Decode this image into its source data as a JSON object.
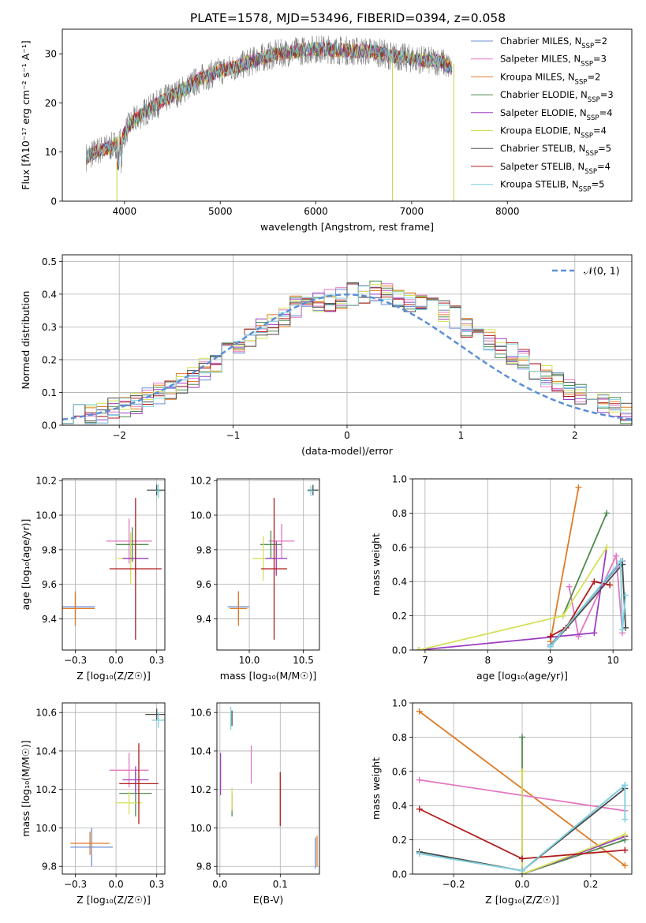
{
  "figure_title": "PLATE=1578, MJD=53496, FIBERID=0394, z=0.058",
  "chart_data": [
    {
      "type": "line",
      "id": "spectrum",
      "title": "PLATE=1578, MJD=53496, FIBERID=0394, z=0.058",
      "xlabel": "wavelength [Angstrom, rest frame]",
      "ylabel": "Flux [fλ10⁻¹⁷ erg cm⁻² s⁻¹ A⁻¹]",
      "xlim": [
        3350,
        9300
      ],
      "ylim": [
        0,
        35
      ],
      "xticks": [
        4000,
        5000,
        6000,
        7000,
        8000
      ],
      "yticks": [
        0,
        10,
        20,
        30
      ],
      "grid": false,
      "legend_position": "top-right",
      "data_color": "#808080",
      "continuum": {
        "x": [
          3600,
          3750,
          3850,
          3950,
          4050,
          4200,
          4400,
          4600,
          4800,
          5000,
          5200,
          5400,
          5600,
          5800,
          6000,
          6200,
          6400,
          6600,
          6800,
          7000,
          7200,
          7300,
          7420
        ],
        "y": [
          9,
          10.5,
          11,
          12,
          15.5,
          18,
          20.5,
          22.5,
          25,
          26.5,
          27.5,
          29,
          30,
          30.5,
          31,
          30.8,
          30.5,
          30.5,
          29.5,
          29,
          28.5,
          28.5,
          27
        ]
      },
      "series": [
        {
          "name": "Chabrier MILES, N_SSP=2",
          "color": "#6b8fd6"
        },
        {
          "name": "Salpeter MILES, N_SSP=3",
          "color": "#e377c2"
        },
        {
          "name": "Kroupa MILES, N_SSP=2",
          "color": "#e07b24"
        },
        {
          "name": "Chabrier ELODIE, N_SSP=3",
          "color": "#4e8a4e"
        },
        {
          "name": "Salpeter ELODIE, N_SSP=4",
          "color": "#9b3ec0"
        },
        {
          "name": "Kroupa ELODIE, N_SSP=4",
          "color": "#d4e157"
        },
        {
          "name": "Chabrier STELIB, N_SSP=5",
          "color": "#4a4a4a"
        },
        {
          "name": "Salpeter STELIB, N_SSP=4",
          "color": "#b01c1c"
        },
        {
          "name": "Kroupa STELIB, N_SSP=5",
          "color": "#7fd3dd"
        }
      ]
    },
    {
      "type": "area",
      "id": "residuals",
      "xlabel": "(data-model)/error",
      "ylabel": "Normed distribution",
      "xlim": [
        -2.5,
        2.5
      ],
      "ylim": [
        0,
        0.52
      ],
      "xticks": [
        -2,
        -1,
        0,
        1,
        2
      ],
      "yticks": [
        0,
        0.1,
        0.2,
        0.3,
        0.4,
        0.5
      ],
      "grid": true,
      "legend_position": "top-right",
      "reference": {
        "name": "𝒩(0, 1)",
        "mean": 0,
        "sigma": 1,
        "color": "#5b8fd6"
      },
      "bin_width": 0.1,
      "base_hist": [
        0.025,
        0.03,
        0.035,
        0.04,
        0.05,
        0.055,
        0.065,
        0.08,
        0.1,
        0.11,
        0.13,
        0.15,
        0.17,
        0.19,
        0.22,
        0.25,
        0.27,
        0.29,
        0.31,
        0.33,
        0.36,
        0.37,
        0.37,
        0.38,
        0.39,
        0.4,
        0.4,
        0.41,
        0.4,
        0.39,
        0.38,
        0.37,
        0.36,
        0.35,
        0.33,
        0.3,
        0.28,
        0.26,
        0.24,
        0.22,
        0.2,
        0.17,
        0.15,
        0.13,
        0.11,
        0.09,
        0.08,
        0.065,
        0.05,
        0.04
      ]
    },
    {
      "type": "scatter",
      "id": "age-vs-Z",
      "xlabel": "Z [log₁₀(Z/Z☉)]",
      "ylabel": "age  [log₁₀(age/yr)]",
      "xlim": [
        -0.33,
        0.3
      ],
      "ylim": [
        9.22,
        10.21
      ],
      "xticks": [
        -0.25,
        0.0,
        0.25
      ],
      "yticks": [
        9.4,
        9.6,
        9.8,
        10.0,
        10.2
      ],
      "grid": true,
      "points": [
        {
          "x": -0.25,
          "y": 9.47,
          "xerr": 0.12,
          "yerr": 0.07,
          "color": "#6b8fd6"
        },
        {
          "x": -0.25,
          "y": 9.46,
          "xerr": 0.12,
          "yerr": 0.1,
          "color": "#e07b24"
        },
        {
          "x": 0.08,
          "y": 9.85,
          "xerr": 0.14,
          "yerr": 0.13,
          "color": "#e377c2"
        },
        {
          "x": 0.1,
          "y": 9.83,
          "xerr": 0.1,
          "yerr": 0.1,
          "color": "#4e8a4e"
        },
        {
          "x": 0.09,
          "y": 9.75,
          "xerr": 0.08,
          "yerr": 0.15,
          "color": "#d4e157"
        },
        {
          "x": 0.12,
          "y": 9.75,
          "xerr": 0.08,
          "yerr": 0.08,
          "color": "#9b3ec0"
        },
        {
          "x": 0.12,
          "y": 9.69,
          "xerr": 0.16,
          "yerr": 0.41,
          "color": "#b01c1c"
        },
        {
          "x": 0.25,
          "y": 10.145,
          "xerr": 0.06,
          "yerr": 0.03,
          "color": "#4a4a4a"
        },
        {
          "x": 0.26,
          "y": 10.14,
          "xerr": 0.02,
          "yerr": 0.04,
          "color": "#7fd3dd"
        }
      ]
    },
    {
      "type": "scatter",
      "id": "age-vs-mass",
      "xlabel": "mass [log₁₀(M/M☉)]",
      "ylabel": "",
      "xlim": [
        9.7,
        10.65
      ],
      "ylim": [
        9.22,
        10.21
      ],
      "xticks": [
        10.0,
        10.5
      ],
      "yticks": [
        9.4,
        9.6,
        9.8,
        10.0,
        10.2
      ],
      "grid": true,
      "points": [
        {
          "x": 9.9,
          "y": 9.47,
          "xerr": 0.1,
          "yerr": 0.08,
          "color": "#6b8fd6"
        },
        {
          "x": 9.9,
          "y": 9.46,
          "xerr": 0.08,
          "yerr": 0.1,
          "color": "#e07b24"
        },
        {
          "x": 10.3,
          "y": 9.85,
          "xerr": 0.12,
          "yerr": 0.1,
          "color": "#e377c2"
        },
        {
          "x": 10.2,
          "y": 9.83,
          "xerr": 0.1,
          "yerr": 0.08,
          "color": "#4e8a4e"
        },
        {
          "x": 10.13,
          "y": 9.75,
          "xerr": 0.1,
          "yerr": 0.13,
          "color": "#d4e157"
        },
        {
          "x": 10.25,
          "y": 9.75,
          "xerr": 0.1,
          "yerr": 0.1,
          "color": "#9b3ec0"
        },
        {
          "x": 10.23,
          "y": 9.69,
          "xerr": 0.12,
          "yerr": 0.41,
          "color": "#b01c1c"
        },
        {
          "x": 10.59,
          "y": 10.145,
          "xerr": 0.05,
          "yerr": 0.03,
          "color": "#4a4a4a"
        },
        {
          "x": 10.57,
          "y": 10.14,
          "xerr": 0.03,
          "yerr": 0.03,
          "color": "#7fd3dd"
        }
      ]
    },
    {
      "type": "line",
      "id": "weight-vs-age",
      "xlabel": "age  [log₁₀(age/yr)]",
      "ylabel": "mass weight",
      "xlim": [
        6.8,
        10.3
      ],
      "ylim": [
        0,
        1
      ],
      "xticks": [
        7,
        8,
        9,
        10
      ],
      "yticks": [
        0,
        0.2,
        0.4,
        0.6,
        0.8,
        1.0
      ],
      "grid": true,
      "series": [
        {
          "color": "#6b8fd6",
          "x": [
            9.0,
            10.15
          ],
          "y": [
            0.03,
            0.52
          ]
        },
        {
          "color": "#e07b24",
          "x": [
            9.0,
            9.45
          ],
          "y": [
            0.05,
            0.95
          ]
        },
        {
          "color": "#e377c2",
          "x": [
            9.3,
            9.45,
            10.05,
            10.15
          ],
          "y": [
            0.37,
            0.08,
            0.55,
            0.1
          ]
        },
        {
          "color": "#4e8a4e",
          "x": [
            9.2,
            9.9
          ],
          "y": [
            0.2,
            0.8
          ]
        },
        {
          "color": "#9b3ec0",
          "x": [
            6.9,
            9.7,
            9.9
          ],
          "y": [
            0.0,
            0.1,
            0.6
          ]
        },
        {
          "color": "#d4e157",
          "x": [
            6.9,
            9.2,
            9.9
          ],
          "y": [
            0.0,
            0.2,
            0.6
          ]
        },
        {
          "color": "#4a4a4a",
          "x": [
            9.0,
            10.15,
            10.2
          ],
          "y": [
            0.02,
            0.5,
            0.13
          ]
        },
        {
          "color": "#b01c1c",
          "x": [
            9.0,
            9.25,
            9.7,
            9.95
          ],
          "y": [
            0.08,
            0.13,
            0.4,
            0.38
          ]
        },
        {
          "color": "#7fd3dd",
          "x": [
            9.0,
            10.12,
            10.15,
            10.2
          ],
          "y": [
            0.02,
            0.52,
            0.12,
            0.32
          ]
        }
      ]
    },
    {
      "type": "scatter",
      "id": "mass-vs-Z",
      "xlabel": "Z [log₁₀(Z/Z☉)]",
      "ylabel": "mass [log₁₀(M/M☉)]",
      "xlim": [
        -0.33,
        0.3
      ],
      "ylim": [
        9.76,
        10.65
      ],
      "xticks": [
        -0.25,
        0.0,
        0.25
      ],
      "yticks": [
        9.8,
        10.0,
        10.2,
        10.4,
        10.6
      ],
      "grid": true,
      "points": [
        {
          "x": -0.15,
          "y": 9.9,
          "xerr": 0.13,
          "yerr": 0.1,
          "color": "#6b8fd6"
        },
        {
          "x": -0.16,
          "y": 9.92,
          "xerr": 0.12,
          "yerr": 0.06,
          "color": "#e07b24"
        },
        {
          "x": 0.08,
          "y": 10.3,
          "xerr": 0.12,
          "yerr": 0.09,
          "color": "#e377c2"
        },
        {
          "x": 0.12,
          "y": 10.18,
          "xerr": 0.1,
          "yerr": 0.12,
          "color": "#4e8a4e"
        },
        {
          "x": 0.08,
          "y": 10.13,
          "xerr": 0.08,
          "yerr": 0.06,
          "color": "#d4e157"
        },
        {
          "x": 0.12,
          "y": 10.25,
          "xerr": 0.08,
          "yerr": 0.07,
          "color": "#9b3ec0"
        },
        {
          "x": 0.14,
          "y": 10.23,
          "xerr": 0.12,
          "yerr": 0.21,
          "color": "#b01c1c"
        },
        {
          "x": 0.25,
          "y": 10.59,
          "xerr": 0.07,
          "yerr": 0.03,
          "color": "#4a4a4a"
        },
        {
          "x": 0.26,
          "y": 10.56,
          "xerr": 0.04,
          "yerr": 0.04,
          "color": "#7fd3dd"
        }
      ]
    },
    {
      "type": "scatter",
      "id": "mass-vs-ebv",
      "xlabel": "E(B-V)",
      "ylabel": "",
      "xlim": [
        -0.005,
        0.165
      ],
      "ylim": [
        9.76,
        10.65
      ],
      "xticks": [
        0.0,
        0.1
      ],
      "yticks": [
        9.8,
        10.0,
        10.2,
        10.4,
        10.6
      ],
      "grid": true,
      "points": [
        {
          "x": 0.158,
          "y": 9.87,
          "xerr": 0,
          "yerr": 0.08,
          "color": "#6b8fd6"
        },
        {
          "x": 0.161,
          "y": 9.88,
          "xerr": 0,
          "yerr": 0.08,
          "color": "#e07b24"
        },
        {
          "x": 0.052,
          "y": 10.33,
          "xerr": 0,
          "yerr": 0.1,
          "color": "#e377c2"
        },
        {
          "x": 0.02,
          "y": 10.12,
          "xerr": 0,
          "yerr": 0.06,
          "color": "#4e8a4e"
        },
        {
          "x": 0.02,
          "y": 10.15,
          "xerr": 0,
          "yerr": 0.06,
          "color": "#d4e157"
        },
        {
          "x": 0.001,
          "y": 10.28,
          "xerr": 0,
          "yerr": 0.11,
          "color": "#9b3ec0"
        },
        {
          "x": 0.1,
          "y": 10.15,
          "xerr": 0,
          "yerr": 0.14,
          "color": "#b01c1c"
        },
        {
          "x": 0.02,
          "y": 10.57,
          "xerr": 0,
          "yerr": 0.04,
          "color": "#4a4a4a"
        },
        {
          "x": 0.018,
          "y": 10.57,
          "xerr": 0,
          "yerr": 0.06,
          "color": "#7fd3dd"
        }
      ]
    },
    {
      "type": "line",
      "id": "weight-vs-Z",
      "xlabel": "Z [log₁₀(Z/Z☉)]",
      "ylabel": "mass weight",
      "xlim": [
        -0.32,
        0.32
      ],
      "ylim": [
        0,
        1
      ],
      "xticks": [
        -0.2,
        0.0,
        0.2
      ],
      "yticks": [
        0,
        0.2,
        0.4,
        0.6,
        0.8,
        1.0
      ],
      "grid": true,
      "series": [
        {
          "color": "#6b8fd6",
          "x": [
            -0.3,
            0.0,
            0.3
          ],
          "y": [
            0.12,
            0.02,
            0.52
          ]
        },
        {
          "color": "#e07b24",
          "x": [
            -0.3,
            0.3
          ],
          "y": [
            0.95,
            0.05
          ]
        },
        {
          "color": "#e377c2",
          "x": [
            -0.3,
            0.3
          ],
          "y": [
            0.55,
            0.37
          ]
        },
        {
          "color": "#4e8a4e",
          "x": [
            0.0,
            0.0,
            0.3
          ],
          "y": [
            0.8,
            0.0,
            0.2
          ]
        },
        {
          "color": "#9b3ec0",
          "x": [
            0.0,
            0.0,
            0.3
          ],
          "y": [
            0.6,
            0.0,
            0.22
          ]
        },
        {
          "color": "#d4e157",
          "x": [
            0.0,
            0.0,
            0.3
          ],
          "y": [
            0.6,
            0.0,
            0.23
          ]
        },
        {
          "color": "#4a4a4a",
          "x": [
            -0.3,
            0.0,
            0.3
          ],
          "y": [
            0.13,
            0.02,
            0.5
          ]
        },
        {
          "color": "#b01c1c",
          "x": [
            -0.3,
            0.0,
            0.3
          ],
          "y": [
            0.38,
            0.09,
            0.14
          ]
        },
        {
          "color": "#7fd3dd",
          "x": [
            -0.3,
            0.0,
            0.3,
            0.3
          ],
          "y": [
            0.12,
            0.02,
            0.52,
            0.32
          ]
        }
      ]
    }
  ]
}
